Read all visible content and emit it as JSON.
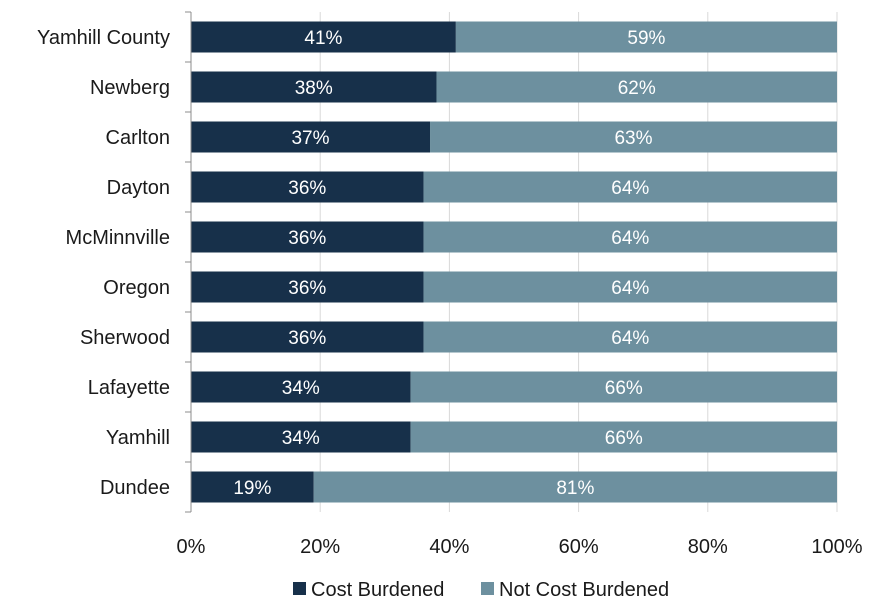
{
  "chart_data": {
    "type": "bar",
    "orientation": "horizontal",
    "stacked": true,
    "categories": [
      "Yamhill County",
      "Newberg",
      "Carlton",
      "Dayton",
      "McMinnville",
      "Oregon",
      "Sherwood",
      "Lafayette",
      "Yamhill",
      "Dundee"
    ],
    "series": [
      {
        "name": "Cost Burdened",
        "color": "#17304a",
        "values": [
          41,
          38,
          37,
          36,
          36,
          36,
          36,
          34,
          34,
          19
        ],
        "labels": [
          "41%",
          "38%",
          "37%",
          "36%",
          "36%",
          "36%",
          "36%",
          "34%",
          "34%",
          "19%"
        ]
      },
      {
        "name": "Not Cost Burdened",
        "color": "#6d909f",
        "values": [
          59,
          62,
          63,
          64,
          64,
          64,
          64,
          66,
          66,
          81
        ],
        "labels": [
          "59%",
          "62%",
          "63%",
          "64%",
          "64%",
          "64%",
          "64%",
          "66%",
          "66%",
          "81%"
        ]
      }
    ],
    "xlim": [
      0,
      100
    ],
    "xticks": [
      "0%",
      "20%",
      "40%",
      "60%",
      "80%",
      "100%"
    ],
    "grid": true,
    "legend": "bottom",
    "title": "",
    "xlabel": "",
    "ylabel": ""
  }
}
